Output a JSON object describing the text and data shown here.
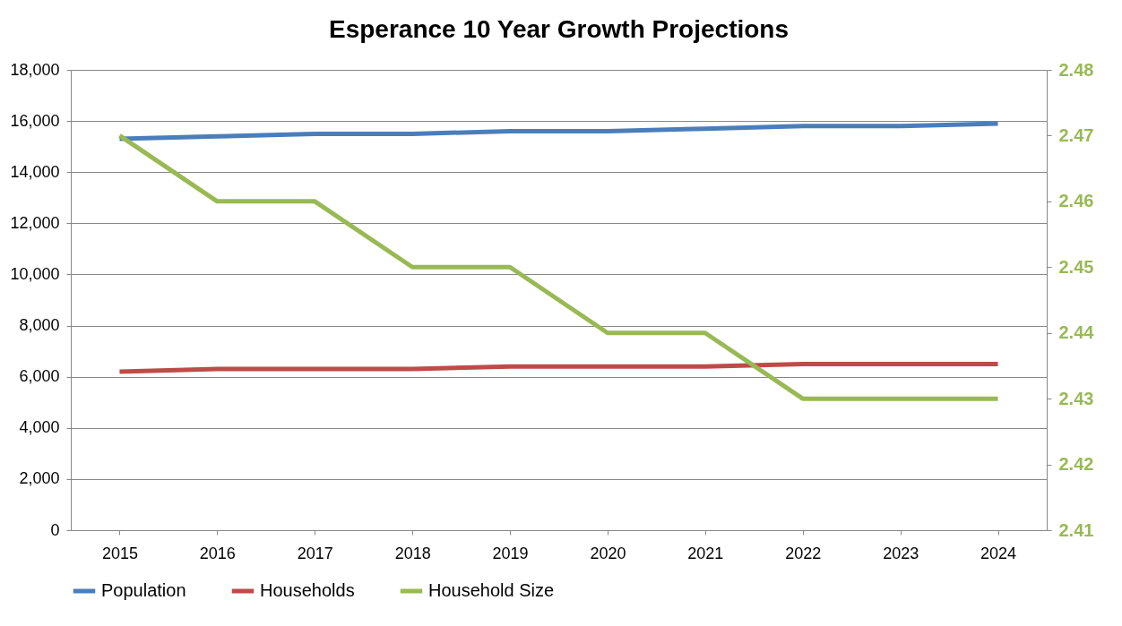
{
  "chart_data": {
    "type": "line",
    "title": "Esperance 10 Year Growth Projections",
    "categories": [
      "2015",
      "2016",
      "2017",
      "2018",
      "2019",
      "2020",
      "2021",
      "2022",
      "2023",
      "2024"
    ],
    "series": [
      {
        "name": "Population",
        "color": "#4a7ebb",
        "values": [
          15300,
          15400,
          15500,
          15500,
          15600,
          15600,
          15700,
          15800,
          15800,
          15900
        ]
      },
      {
        "name": "Households",
        "color": "#be4b48",
        "values": [
          6200,
          6300,
          6300,
          6300,
          6400,
          6400,
          6400,
          6500,
          6500,
          6500
        ]
      },
      {
        "name": "Household Size",
        "color": "#98b954",
        "axis": "y2",
        "values": [
          2.47,
          2.46,
          2.46,
          2.45,
          2.45,
          2.44,
          2.44,
          2.43,
          2.43,
          2.43
        ]
      }
    ],
    "ylim": [
      0,
      18000
    ],
    "yticks": [
      0,
      {
        "value": 2000,
        "label": "2,000"
      },
      {
        "value": 4000,
        "label": "4,000"
      },
      {
        "value": 6000,
        "label": "6,000"
      },
      {
        "value": 8000,
        "label": "8,000"
      },
      {
        "value": 10000,
        "label": "10,000"
      },
      {
        "value": 12000,
        "label": "12,000"
      },
      {
        "value": 14000,
        "label": "14,000"
      },
      {
        "value": 16000,
        "label": "16,000"
      },
      {
        "value": 18000,
        "label": "18,000"
      }
    ],
    "y2lim": [
      2.41,
      2.48
    ],
    "y2ticks": [
      2.41,
      2.42,
      2.43,
      2.44,
      2.45,
      2.46,
      2.47,
      2.48
    ],
    "grid": "y",
    "legend": "bottom",
    "marker": "none",
    "line_style": "solid"
  }
}
